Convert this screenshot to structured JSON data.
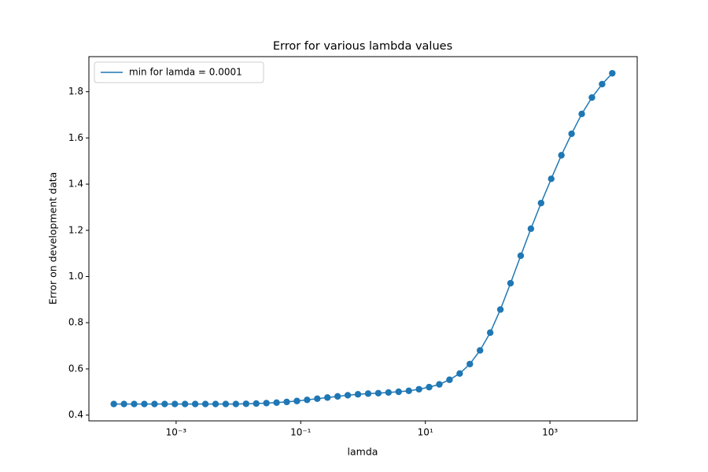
{
  "chart_data": {
    "type": "line",
    "title": "Error for various lambda values",
    "x_label": "lamda",
    "y_label": "Error on development data",
    "x_scale": "log",
    "legend_loc": "upper left",
    "x": [
      0.0001,
      0.0001456,
      0.0002121,
      0.0003089,
      0.0004498,
      0.0006551,
      0.0009541,
      0.001389,
      0.002024,
      0.002947,
      0.004292,
      0.006251,
      0.009103,
      0.01326,
      0.01931,
      0.02812,
      0.04095,
      0.05964,
      0.08685,
      0.1265,
      0.1842,
      0.2683,
      0.3907,
      0.569,
      0.8286,
      1.207,
      1.758,
      2.56,
      3.728,
      5.429,
      7.906,
      11.51,
      16.77,
      24.42,
      35.56,
      51.79,
      75.43,
      109.9,
      160,
      233,
      339.3,
      494.2,
      719.7,
      1048,
      1526,
      2223,
      3237,
      4715,
      6866,
      10000
    ],
    "series": [
      {
        "name": "min for lamda = 0.0001",
        "color": "#1f77b4",
        "marker": "circle",
        "values": [
          0.448,
          0.448,
          0.448,
          0.448,
          0.448,
          0.448,
          0.448,
          0.448,
          0.448,
          0.448,
          0.448,
          0.448,
          0.448,
          0.449,
          0.45,
          0.452,
          0.454,
          0.457,
          0.461,
          0.466,
          0.471,
          0.476,
          0.481,
          0.486,
          0.49,
          0.493,
          0.495,
          0.498,
          0.501,
          0.505,
          0.512,
          0.521,
          0.533,
          0.553,
          0.58,
          0.621,
          0.68,
          0.757,
          0.857,
          0.971,
          1.09,
          1.207,
          1.318,
          1.423,
          1.525,
          1.618,
          1.704,
          1.775,
          1.833,
          1.88
        ]
      }
    ],
    "xlim": [
      3.981e-05,
      25119
    ],
    "xticks": [
      {
        "value": 0.001,
        "label": "10⁻³"
      },
      {
        "value": 0.1,
        "label": "10⁻¹"
      },
      {
        "value": 10,
        "label": "10¹"
      },
      {
        "value": 1000,
        "label": "10³"
      }
    ],
    "ylim": [
      0.375,
      1.952
    ],
    "yticks": [
      0.4,
      0.6,
      0.8,
      {
        "value": 1,
        "label": "1.0"
      },
      1.2,
      1.4,
      1.6,
      1.8
    ]
  }
}
